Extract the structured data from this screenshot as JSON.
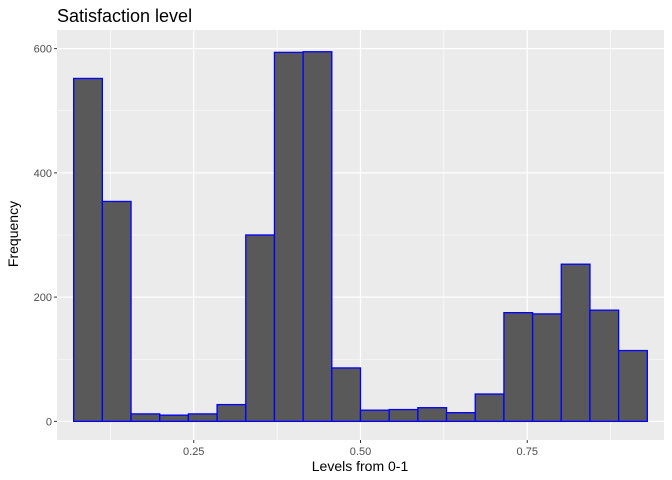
{
  "chart_data": {
    "type": "bar",
    "title": "Satisfaction level",
    "xlabel": "Levels from 0-1",
    "ylabel": "Frequency",
    "xlim": [
      0.045,
      0.955
    ],
    "ylim": [
      -30,
      630
    ],
    "x_ticks": [
      0.25,
      0.5,
      0.75
    ],
    "x_tick_labels": [
      "0.25",
      "0.50",
      "0.75"
    ],
    "y_ticks": [
      0,
      200,
      400,
      600
    ],
    "y_tick_labels": [
      "0",
      "200",
      "400",
      "600"
    ],
    "bin_width": 0.043,
    "bins": [
      {
        "start": 0.07,
        "count": 552
      },
      {
        "start": 0.113,
        "count": 354
      },
      {
        "start": 0.156,
        "count": 12
      },
      {
        "start": 0.199,
        "count": 10
      },
      {
        "start": 0.242,
        "count": 12
      },
      {
        "start": 0.285,
        "count": 27
      },
      {
        "start": 0.328,
        "count": 300
      },
      {
        "start": 0.371,
        "count": 594
      },
      {
        "start": 0.414,
        "count": 595
      },
      {
        "start": 0.457,
        "count": 86
      },
      {
        "start": 0.5,
        "count": 18
      },
      {
        "start": 0.543,
        "count": 19
      },
      {
        "start": 0.586,
        "count": 22
      },
      {
        "start": 0.629,
        "count": 14
      },
      {
        "start": 0.672,
        "count": 44
      },
      {
        "start": 0.715,
        "count": 175
      },
      {
        "start": 0.758,
        "count": 173
      },
      {
        "start": 0.801,
        "count": 253
      },
      {
        "start": 0.844,
        "count": 179
      },
      {
        "start": 0.887,
        "count": 114
      }
    ],
    "grid": true,
    "colors": {
      "panel_background": "#EBEBEB",
      "grid": "#FFFFFF",
      "bar_fill": "#595959",
      "bar_outline": "#0000FF"
    }
  }
}
